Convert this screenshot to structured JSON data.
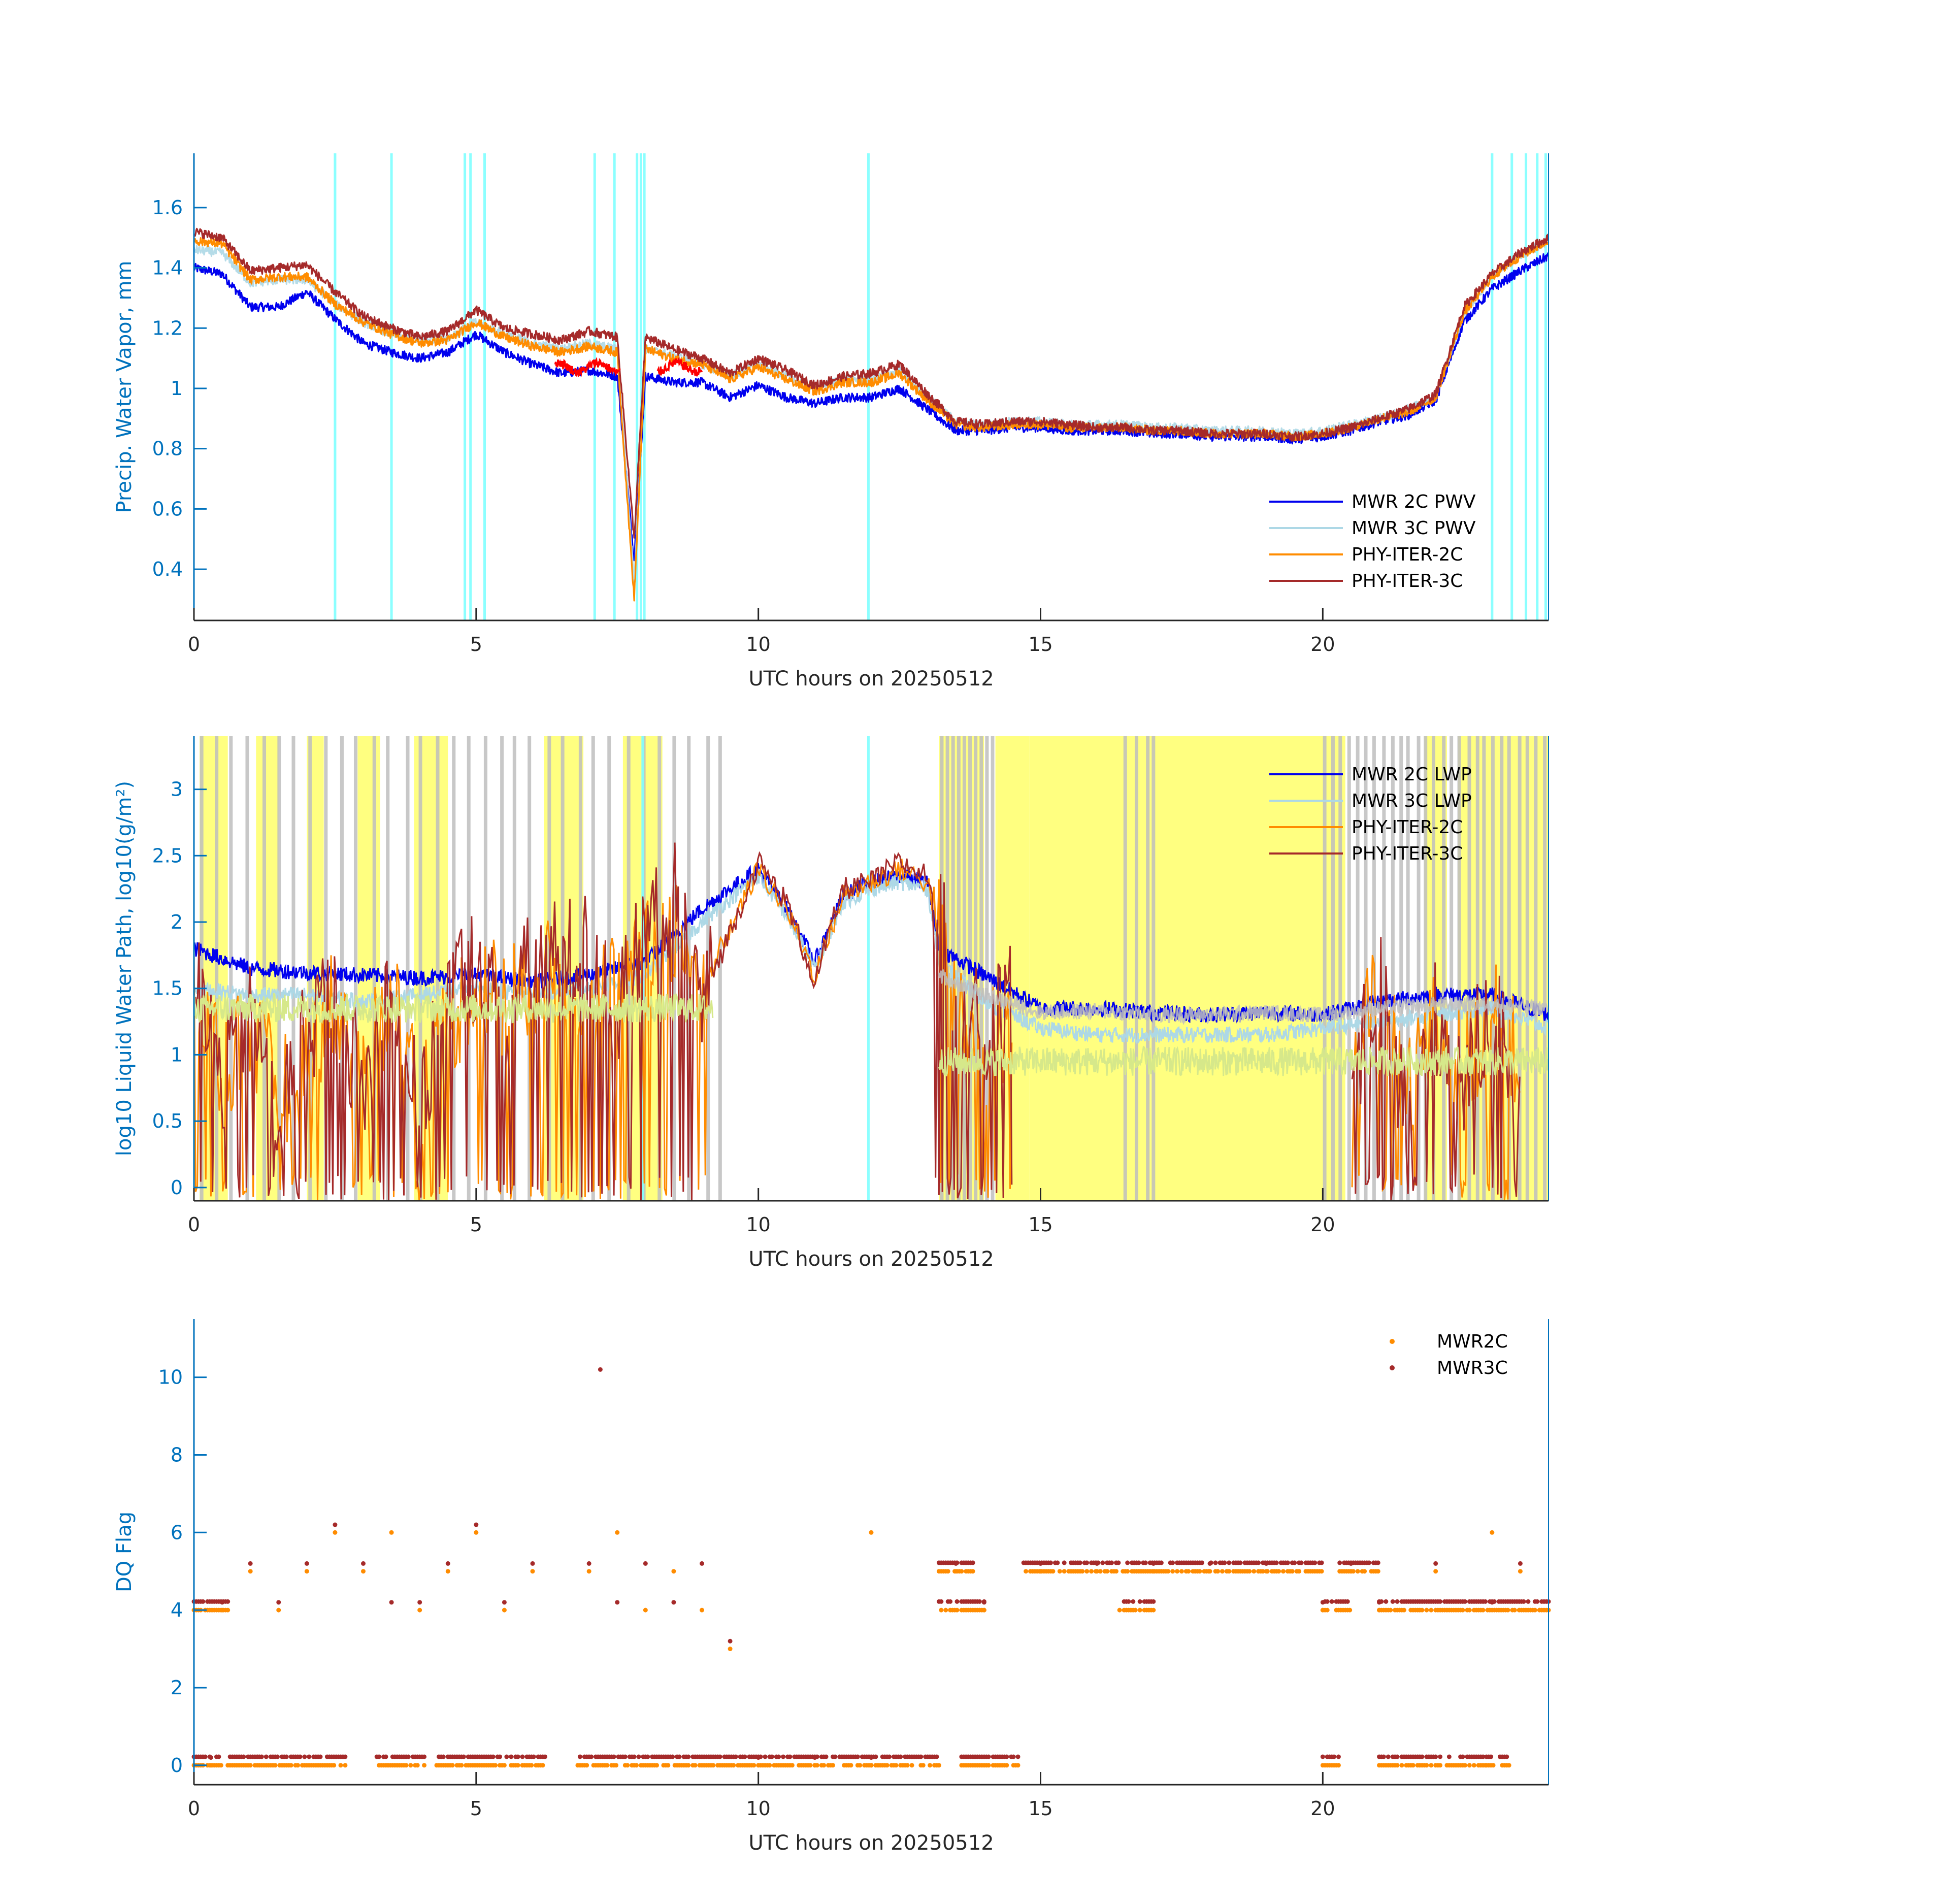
{
  "colors": {
    "mwr2c": "#0000EE",
    "mwr3c": "#ADD8E6",
    "phy2c": "#FF8C00",
    "phy3c": "#A52A2A",
    "qc_red": "#FF0000",
    "cyan_flag": "#7FFFFF",
    "yellow_flag": "#FFFF80",
    "gray_flag": "#BEBEBE",
    "axis_blue": "#0072BD",
    "dq_mwr2c": "#FF8C00",
    "dq_mwr3c": "#A52A2A"
  },
  "chart_data": [
    {
      "id": "pwv",
      "type": "line",
      "title": "",
      "xlabel": "UTC hours on 20250512",
      "ylabel": "Precip. Water Vapor, mm",
      "xlim": [
        0,
        24
      ],
      "ylim": [
        0.23,
        1.78
      ],
      "xticks": [
        0,
        5,
        10,
        15,
        20
      ],
      "yticks": [
        0.4,
        0.6,
        0.8,
        1,
        1.2,
        1.4,
        1.6
      ],
      "ytick_labels": [
        "0.4",
        "0.6",
        "0.8",
        "1",
        "1.2",
        "1.4",
        "1.6"
      ],
      "legend_location": "lower-right",
      "series": [
        {
          "name": "MWR 2C PWV",
          "color_key": "mwr2c",
          "x": [
            0,
            0.5,
            1,
            1.5,
            2,
            2.5,
            3,
            3.5,
            4,
            4.5,
            5,
            5.5,
            6,
            6.5,
            7,
            7.5,
            7.8,
            8,
            8.5,
            9,
            9.5,
            10,
            10.5,
            11,
            11.5,
            12,
            12.5,
            13,
            13.5,
            14,
            14.5,
            15,
            15.5,
            16,
            16.5,
            17,
            17.5,
            18,
            18.5,
            19,
            19.5,
            20,
            20.5,
            21,
            21.5,
            22,
            22.5,
            23,
            23.5,
            24
          ],
          "values": [
            1.4,
            1.38,
            1.27,
            1.27,
            1.32,
            1.23,
            1.15,
            1.12,
            1.1,
            1.12,
            1.18,
            1.12,
            1.08,
            1.05,
            1.06,
            1.04,
            0.43,
            1.04,
            1.02,
            1.02,
            0.97,
            1.01,
            0.97,
            0.95,
            0.97,
            0.97,
            1.0,
            0.93,
            0.86,
            0.86,
            0.87,
            0.87,
            0.86,
            0.86,
            0.86,
            0.85,
            0.85,
            0.84,
            0.84,
            0.84,
            0.83,
            0.84,
            0.86,
            0.89,
            0.91,
            0.96,
            1.22,
            1.33,
            1.39,
            1.44
          ]
        },
        {
          "name": "MWR 3C PWV",
          "color_key": "mwr3c",
          "x": [
            0,
            0.5,
            1,
            1.5,
            2,
            2.5,
            3,
            3.5,
            4,
            4.5,
            5,
            5.5,
            6,
            6.5,
            7,
            7.5,
            7.8,
            8,
            8.5,
            9,
            9.5,
            10,
            10.5,
            11,
            11.5,
            12,
            12.5,
            13,
            13.5,
            14,
            14.5,
            15,
            15.5,
            16,
            16.5,
            17,
            17.5,
            18,
            18.5,
            19,
            19.5,
            20,
            20.5,
            21,
            21.5,
            22,
            22.5,
            23,
            23.5,
            24
          ],
          "values": [
            1.46,
            1.45,
            1.35,
            1.36,
            1.36,
            1.28,
            1.22,
            1.18,
            1.16,
            1.17,
            1.22,
            1.18,
            1.15,
            1.13,
            1.15,
            1.13,
            0.36,
            1.13,
            1.11,
            1.08,
            1.04,
            1.08,
            1.04,
            1.0,
            1.03,
            1.03,
            1.06,
            0.97,
            0.89,
            0.88,
            0.89,
            0.89,
            0.88,
            0.88,
            0.88,
            0.87,
            0.87,
            0.86,
            0.86,
            0.86,
            0.85,
            0.86,
            0.88,
            0.9,
            0.93,
            0.97,
            1.25,
            1.37,
            1.44,
            1.49
          ]
        },
        {
          "name": "PHY-ITER-2C",
          "color_key": "phy2c",
          "x": [
            0,
            0.5,
            1,
            1.5,
            2,
            2.5,
            3,
            3.5,
            4,
            4.5,
            5,
            5.5,
            6,
            6.5,
            7,
            7.5,
            7.8,
            8,
            8.5,
            9,
            9.5,
            10,
            10.5,
            11,
            11.5,
            12,
            12.5,
            13,
            13.5,
            14,
            14.5,
            15,
            15.5,
            16,
            16.5,
            17,
            17.5,
            18,
            18.5,
            19,
            19.5,
            20,
            20.5,
            21,
            21.5,
            22,
            22.5,
            23,
            23.5,
            24
          ],
          "values": [
            1.49,
            1.48,
            1.36,
            1.37,
            1.37,
            1.28,
            1.22,
            1.18,
            1.15,
            1.16,
            1.22,
            1.17,
            1.14,
            1.12,
            1.14,
            1.12,
            0.3,
            1.13,
            1.1,
            1.08,
            1.03,
            1.07,
            1.03,
            0.99,
            1.02,
            1.02,
            1.05,
            0.96,
            0.88,
            0.87,
            0.88,
            0.88,
            0.87,
            0.87,
            0.87,
            0.86,
            0.86,
            0.85,
            0.85,
            0.85,
            0.84,
            0.85,
            0.87,
            0.9,
            0.92,
            0.97,
            1.25,
            1.37,
            1.44,
            1.49
          ]
        },
        {
          "name": "PHY-ITER-3C",
          "color_key": "phy3c",
          "x": [
            0,
            0.5,
            1,
            1.5,
            2,
            2.5,
            3,
            3.5,
            4,
            4.5,
            5,
            5.5,
            6,
            6.5,
            7,
            7.5,
            7.8,
            8,
            8.5,
            9,
            9.5,
            10,
            10.5,
            11,
            11.5,
            12,
            12.5,
            13,
            13.5,
            14,
            14.5,
            15,
            15.5,
            16,
            16.5,
            17,
            17.5,
            18,
            18.5,
            19,
            19.5,
            20,
            20.5,
            21,
            21.5,
            22,
            22.5,
            23,
            23.5,
            24
          ],
          "values": [
            1.52,
            1.5,
            1.39,
            1.4,
            1.41,
            1.32,
            1.24,
            1.2,
            1.17,
            1.19,
            1.26,
            1.2,
            1.18,
            1.16,
            1.19,
            1.17,
            0.5,
            1.17,
            1.13,
            1.1,
            1.05,
            1.1,
            1.06,
            1.01,
            1.04,
            1.05,
            1.08,
            0.98,
            0.89,
            0.88,
            0.89,
            0.89,
            0.88,
            0.87,
            0.87,
            0.86,
            0.86,
            0.85,
            0.85,
            0.85,
            0.84,
            0.85,
            0.87,
            0.9,
            0.93,
            0.98,
            1.27,
            1.38,
            1.45,
            1.5
          ]
        }
      ]
    },
    {
      "id": "lwp",
      "type": "line",
      "title": "",
      "xlabel": "UTC hours on 20250512",
      "ylabel": "log10 Liquid Water Path, log10(g/m²)",
      "xlim": [
        0,
        24
      ],
      "ylim": [
        -0.1,
        3.4
      ],
      "xticks": [
        0,
        5,
        10,
        15,
        20
      ],
      "yticks": [
        0,
        0.5,
        1,
        1.5,
        2,
        2.5,
        3
      ],
      "ytick_labels": [
        "0",
        "0.5",
        "1",
        "1.5",
        "2",
        "2.5",
        "3"
      ],
      "legend_location": "top-right",
      "series": [
        {
          "name": "MWR 2C LWP",
          "color_key": "mwr2c",
          "x": [
            0,
            1,
            2,
            3,
            4,
            5,
            6,
            7,
            8,
            9,
            10,
            10.5,
            11,
            11.5,
            12,
            12.5,
            13,
            13.2,
            14,
            15,
            16,
            17,
            18,
            19,
            20,
            21,
            22,
            23,
            24
          ],
          "values": [
            1.8,
            1.65,
            1.62,
            1.6,
            1.58,
            1.6,
            1.55,
            1.6,
            1.7,
            2.1,
            2.4,
            2.1,
            1.7,
            2.2,
            2.3,
            2.35,
            2.3,
            1.8,
            1.6,
            1.35,
            1.35,
            1.32,
            1.3,
            1.32,
            1.3,
            1.4,
            1.45,
            1.45,
            1.3
          ]
        },
        {
          "name": "MWR 3C LWP",
          "color_key": "mwr3c",
          "x": [
            0,
            1,
            2,
            3,
            4,
            5,
            6,
            7,
            8,
            9,
            10,
            10.5,
            11,
            11.5,
            12,
            12.5,
            13,
            13.2,
            14,
            15,
            16,
            17,
            18,
            19,
            20,
            21,
            22,
            23,
            24
          ],
          "values": [
            1.5,
            1.45,
            1.45,
            1.4,
            1.45,
            1.5,
            1.45,
            1.5,
            1.6,
            2.0,
            2.35,
            2.05,
            1.65,
            2.15,
            2.25,
            2.3,
            2.25,
            1.7,
            1.4,
            1.2,
            1.15,
            1.15,
            1.15,
            1.15,
            1.2,
            1.25,
            1.3,
            1.35,
            1.2
          ]
        },
        {
          "name": "PHY-ITER-2C",
          "color_key": "phy2c",
          "x": [
            0,
            0.5,
            1,
            1.5,
            2,
            2.5,
            3,
            3.5,
            4,
            4.5,
            5,
            5.5,
            6,
            7,
            7.5,
            8,
            8.5,
            9,
            10,
            10.5,
            11,
            11.5,
            12,
            12.5,
            13,
            13.5,
            14,
            14.5,
            15,
            16,
            17,
            20,
            20.5,
            21,
            21.5,
            22,
            22.5,
            23,
            23.5,
            24
          ],
          "values": [
            1.5,
            0.9,
            1.2,
            0.7,
            1.0,
            1.4,
            0.8,
            1.5,
            0.7,
            1.2,
            1.6,
            1.4,
            1.6,
            1.5,
            1.5,
            1.7,
            2.0,
            1.5,
            2.4,
            2.1,
            1.6,
            2.2,
            2.3,
            2.4,
            2.3,
            1.4,
            1.0,
            1.3,
            null,
            null,
            null,
            null,
            1.0,
            1.4,
            0.8,
            1.2,
            0.9,
            1.3,
            0.9,
            null
          ]
        },
        {
          "name": "PHY-ITER-3C",
          "color_key": "phy3c",
          "x": [
            0,
            0.5,
            1,
            1.5,
            2,
            2.5,
            3,
            3.5,
            4,
            4.5,
            5,
            5.5,
            6,
            7,
            7.5,
            8,
            8.5,
            9,
            10,
            10.5,
            11,
            11.5,
            12,
            12.5,
            13,
            13.5,
            14,
            14.5,
            15,
            16,
            17,
            20,
            20.5,
            21,
            21.5,
            22,
            22.5,
            23,
            23.5,
            24
          ],
          "values": [
            1.6,
            0.8,
            1.4,
            0.5,
            1.2,
            1.5,
            0.7,
            1.6,
            0.5,
            1.5,
            1.7,
            1.2,
            1.7,
            1.8,
            1.3,
            1.9,
            2.2,
            1.4,
            2.45,
            2.15,
            1.55,
            2.25,
            2.3,
            2.45,
            2.35,
            1.5,
            1.1,
            1.4,
            null,
            null,
            null,
            null,
            0.8,
            1.5,
            0.5,
            1.3,
            0.8,
            1.4,
            0.7,
            null
          ]
        },
        {
          "name": "",
          "color_key": "gray_flag",
          "x": [
            13.2,
            14,
            15,
            16,
            17,
            18,
            19,
            20,
            21,
            22,
            23,
            24
          ],
          "values": [
            1.6,
            1.45,
            1.32,
            1.33,
            1.3,
            1.3,
            1.32,
            1.3,
            1.35,
            1.38,
            1.38,
            1.35
          ]
        }
      ]
    },
    {
      "id": "dq",
      "type": "scatter",
      "title": "",
      "xlabel": "UTC hours on 20250512",
      "ylabel": "DQ Flag",
      "xlim": [
        0,
        24
      ],
      "ylim": [
        -0.5,
        11.5
      ],
      "xticks": [
        0,
        5,
        10,
        15,
        20
      ],
      "yticks": [
        0,
        2,
        4,
        6,
        8,
        10
      ],
      "ytick_labels": [
        "0",
        "2",
        "4",
        "6",
        "8",
        "10"
      ],
      "legend_location": "top-right",
      "series": [
        {
          "name": "MWR2C",
          "color_key": "dq_mwr2c",
          "x": [
            0.3,
            0.5,
            1.0,
            1.5,
            2.0,
            2.5,
            3.0,
            3.5,
            4.0,
            4.5,
            5.0,
            5.5,
            6.0,
            7.0,
            7.5,
            8.0,
            8.5,
            9.0,
            9.5,
            10.0,
            11.0,
            12.0,
            12.0,
            13.5,
            14.0,
            15.0,
            16.0,
            17.0,
            18.0,
            19.0,
            20.0,
            20.5,
            21.0,
            22.0,
            23.0,
            23.5
          ],
          "values": [
            0,
            4,
            5,
            4,
            5,
            6,
            5,
            6,
            4,
            5,
            6,
            4,
            5,
            5,
            6,
            4,
            5,
            4,
            3,
            0,
            0,
            6,
            0,
            5,
            4,
            5,
            5,
            5,
            5,
            5,
            4,
            5,
            4,
            5,
            6,
            5
          ]
        },
        {
          "name": "MWR3C",
          "color_key": "dq_mwr3c",
          "x": [
            0.3,
            0.5,
            1.0,
            1.5,
            2.0,
            2.5,
            3.0,
            3.5,
            4.0,
            4.5,
            5.0,
            5.5,
            6.0,
            7.0,
            7.2,
            7.5,
            8.0,
            8.5,
            9.0,
            9.5,
            10.0,
            11.0,
            12.0,
            13.5,
            14.0,
            15.0,
            16.0,
            17.0,
            18.0,
            19.0,
            20.0,
            20.5,
            21.0,
            22.0,
            23.0,
            23.5
          ],
          "values": [
            0.2,
            4.2,
            5.2,
            4.2,
            5.2,
            6.2,
            5.2,
            4.2,
            4.2,
            5.2,
            6.2,
            4.2,
            5.2,
            5.2,
            10.2,
            4.2,
            5.2,
            4.2,
            5.2,
            3.2,
            0.2,
            0.2,
            0.2,
            5.2,
            4.2,
            5.2,
            5.2,
            5.2,
            5.2,
            5.2,
            4.2,
            5.2,
            4.2,
            5.2,
            4.2,
            5.2
          ]
        }
      ]
    }
  ]
}
